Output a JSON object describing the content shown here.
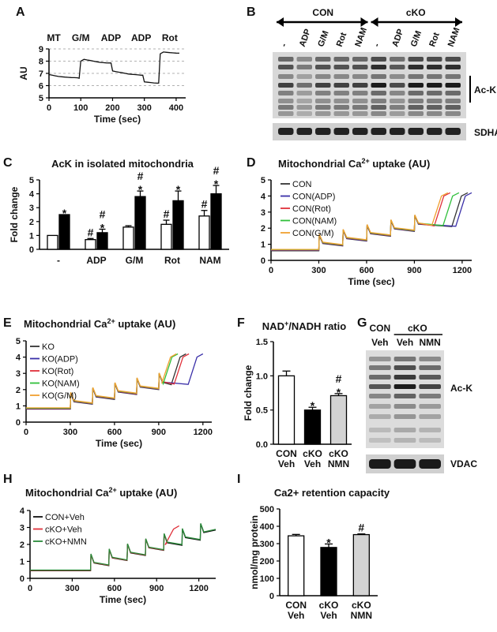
{
  "panel_labels": [
    "A",
    "B",
    "C",
    "D",
    "E",
    "F",
    "G",
    "H",
    "I"
  ],
  "blot_b": {
    "groups": [
      "CON",
      "cKO"
    ],
    "lanes": [
      "-",
      "ADP",
      "G/M",
      "Rot",
      "NAM",
      "-",
      "ADP",
      "G/M",
      "Rot",
      "NAM"
    ],
    "labels": [
      "Ac-K",
      "SDHA"
    ]
  },
  "blot_g": {
    "groups": [
      "CON",
      "cKO"
    ],
    "lanes": [
      "Veh",
      "Veh",
      "NMN"
    ],
    "labels": [
      "Ac-K",
      "VDAC"
    ]
  },
  "chart_data": [
    {
      "id": "A",
      "type": "line",
      "xlabel": "Time (sec)",
      "ylabel": "AU",
      "xlim": [
        0,
        430
      ],
      "ylim": [
        5,
        9
      ],
      "xticks": [
        0,
        100,
        200,
        300,
        400
      ],
      "yticks": [
        5,
        6,
        7,
        8,
        9
      ],
      "grid": true,
      "annotations": [
        {
          "text": "MT",
          "x": 15
        },
        {
          "text": "G/M",
          "x": 100
        },
        {
          "text": "ADP",
          "x": 195
        },
        {
          "text": "ADP",
          "x": 290
        },
        {
          "text": "Rot",
          "x": 380
        }
      ],
      "x": [
        0,
        10,
        20,
        30,
        40,
        50,
        60,
        70,
        80,
        90,
        95,
        100,
        110,
        120,
        130,
        140,
        150,
        160,
        170,
        180,
        190,
        195,
        200,
        210,
        220,
        230,
        240,
        250,
        260,
        270,
        280,
        290,
        295,
        300,
        310,
        320,
        330,
        340,
        345,
        350,
        360,
        370,
        380,
        390,
        400,
        410
      ],
      "values": [
        6.9,
        6.85,
        6.8,
        6.75,
        6.72,
        6.7,
        6.68,
        6.66,
        6.65,
        6.64,
        6.6,
        8.0,
        8.15,
        8.1,
        8.05,
        8.0,
        7.95,
        7.9,
        7.88,
        7.86,
        7.85,
        7.85,
        7.2,
        7.15,
        7.1,
        7.05,
        7.0,
        6.95,
        6.92,
        6.9,
        6.88,
        6.85,
        6.85,
        6.3,
        6.28,
        6.25,
        6.22,
        6.2,
        6.2,
        8.6,
        8.75,
        8.72,
        8.7,
        8.68,
        8.66,
        8.65
      ]
    },
    {
      "id": "C",
      "type": "bar",
      "title": "AcK in isolated mitochondria",
      "ylabel": "Fold change",
      "ylim": [
        0,
        5
      ],
      "yticks": [
        0,
        1,
        2,
        3,
        4,
        5
      ],
      "categories": [
        "-",
        "ADP",
        "G/M",
        "Rot",
        "NAM"
      ],
      "series": [
        {
          "values": [
            1.0,
            0.7,
            1.6,
            1.8,
            2.4
          ],
          "errors": [
            0,
            0.08,
            0.1,
            0.3,
            0.4
          ],
          "marks": [
            "",
            "#",
            "",
            "#",
            "#"
          ]
        },
        {
          "values": [
            2.5,
            1.2,
            3.8,
            3.5,
            4.0
          ],
          "errors": [
            0,
            0.25,
            0.4,
            0.7,
            0.6
          ],
          "marks": [
            "*",
            "#\n*",
            "#\n*",
            "*",
            "#\n*"
          ]
        }
      ]
    },
    {
      "id": "D",
      "type": "line",
      "title": "Mitochondrial Ca2+ uptake (AU)",
      "xlabel": "Time (sec)",
      "xlim": [
        0,
        1260
      ],
      "ylim": [
        0,
        5
      ],
      "xticks": [
        0,
        300,
        600,
        900,
        1200
      ],
      "yticks": [
        0,
        1,
        2,
        3,
        4,
        5
      ],
      "series": [
        {
          "name": "CON",
          "color": "#333333",
          "release_x": 1135
        },
        {
          "name": "CON(ADP)",
          "color": "#3a2fa8",
          "release_x": 1160
        },
        {
          "name": "CON(Rot)",
          "color": "#e0303a",
          "release_x": 1025
        },
        {
          "name": "CON(NAM)",
          "color": "#2fbf3a",
          "release_x": 1080
        },
        {
          "name": "CON(G/M)",
          "color": "#f0a030",
          "release_x": 1010
        }
      ],
      "pulse_x": [
        300,
        450,
        600,
        750,
        900
      ],
      "baseline": 0.6,
      "pulse_step": 0.3,
      "final_max": 4.2
    },
    {
      "id": "E",
      "type": "line",
      "title": "Mitochondrial Ca2+ uptake (AU)",
      "xlabel": "Time (sec)",
      "xlim": [
        0,
        1260
      ],
      "ylim": [
        0,
        5
      ],
      "xticks": [
        0,
        300,
        600,
        900,
        1200
      ],
      "yticks": [
        0,
        1,
        2,
        3,
        4,
        5
      ],
      "series": [
        {
          "name": "KO",
          "color": "#333333",
          "release_x": 985
        },
        {
          "name": "KO(ADP)",
          "color": "#3a2fa8",
          "release_x": 1100
        },
        {
          "name": "KO(Rot)",
          "color": "#e0303a",
          "release_x": 1005
        },
        {
          "name": "KO(NAM)",
          "color": "#2fbf3a",
          "release_x": 930
        },
        {
          "name": "KO(G/M)",
          "color": "#f0a030",
          "release_x": 920
        }
      ],
      "pulse_x": [
        300,
        450,
        600,
        750,
        900
      ],
      "baseline": 0.8,
      "pulse_step": 0.3,
      "final_max": 4.2
    },
    {
      "id": "F",
      "type": "bar",
      "title": "NAD+/NADH ratio",
      "ylabel": "Fold change",
      "ylim": [
        0,
        1.5
      ],
      "yticks": [
        "0.0",
        "0.5",
        "1.0",
        "1.5"
      ],
      "categories": [
        [
          "CON",
          "Veh"
        ],
        [
          "cKO",
          "Veh"
        ],
        [
          "cKO",
          "NMN"
        ]
      ],
      "values": [
        1.0,
        0.5,
        0.71
      ],
      "errors": [
        0.07,
        0.04,
        0.03
      ],
      "colors": [
        "#ffffff",
        "#000000",
        "#d3d3d3"
      ],
      "marks": [
        "",
        "*",
        "#\n*"
      ]
    },
    {
      "id": "H",
      "type": "line",
      "title": "Mitochondrial Ca2+ uptake (AU)",
      "xlabel": "Time (sec)",
      "xlim": [
        0,
        1320
      ],
      "ylim": [
        0,
        4
      ],
      "xticks": [
        0,
        300,
        600,
        900,
        1200
      ],
      "yticks": [
        0,
        1,
        2,
        3,
        4
      ],
      "series": [
        {
          "name": "CON+Veh",
          "color": "#111111",
          "release_x": 9999
        },
        {
          "name": "cKO+Veh",
          "color": "#e0303a",
          "release_x": 960
        },
        {
          "name": "cKO+NMN",
          "color": "#2a8a3a",
          "release_x": 9999
        }
      ],
      "pulse_x": [
        430,
        560,
        690,
        820,
        950,
        1080,
        1210
      ],
      "baseline": 0.45,
      "pulse_step": 0.3,
      "final_max": 3.1
    },
    {
      "id": "I",
      "type": "bar",
      "title": "Ca2+ retention capacity",
      "ylabel": "nmol/mg protein",
      "ylim": [
        0,
        500
      ],
      "yticks": [
        0,
        100,
        200,
        300,
        400,
        500
      ],
      "categories": [
        [
          "CON",
          "Veh"
        ],
        [
          "cKO",
          "Veh"
        ],
        [
          "cKO",
          "NMN"
        ]
      ],
      "values": [
        345,
        278,
        352
      ],
      "errors": [
        8,
        20,
        4
      ],
      "colors": [
        "#ffffff",
        "#000000",
        "#d3d3d3"
      ],
      "marks": [
        "",
        "*",
        "#"
      ]
    }
  ]
}
